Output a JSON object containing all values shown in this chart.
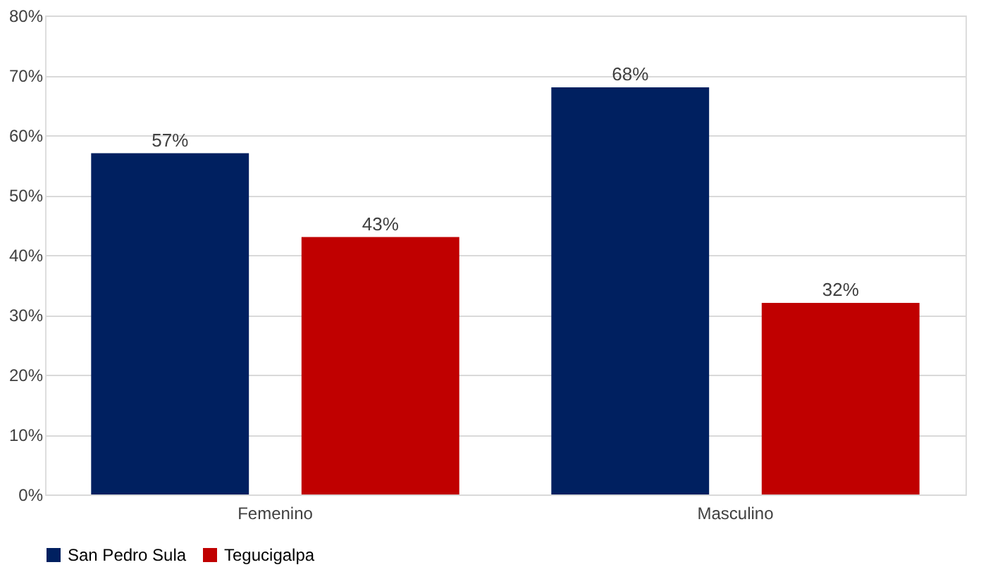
{
  "chart_data": {
    "type": "bar",
    "categories": [
      "Femenino",
      "Masculino"
    ],
    "series": [
      {
        "name": "San Pedro Sula",
        "color": "#002060",
        "values": [
          57,
          68
        ],
        "value_labels": [
          "57%",
          "68%"
        ]
      },
      {
        "name": "Tegucigalpa",
        "color": "#c00000",
        "values": [
          43,
          32
        ],
        "value_labels": [
          "43%",
          "32%"
        ]
      }
    ],
    "ylim": [
      0,
      80
    ],
    "yticks": [
      {
        "value": 0,
        "label": "0%"
      },
      {
        "value": 10,
        "label": "10%"
      },
      {
        "value": 20,
        "label": "20%"
      },
      {
        "value": 30,
        "label": "30%"
      },
      {
        "value": 40,
        "label": "40%"
      },
      {
        "value": 50,
        "label": "50%"
      },
      {
        "value": 60,
        "label": "60%"
      },
      {
        "value": 70,
        "label": "70%"
      },
      {
        "value": 80,
        "label": "80%"
      }
    ],
    "grid": "y",
    "legend": "bottom"
  }
}
